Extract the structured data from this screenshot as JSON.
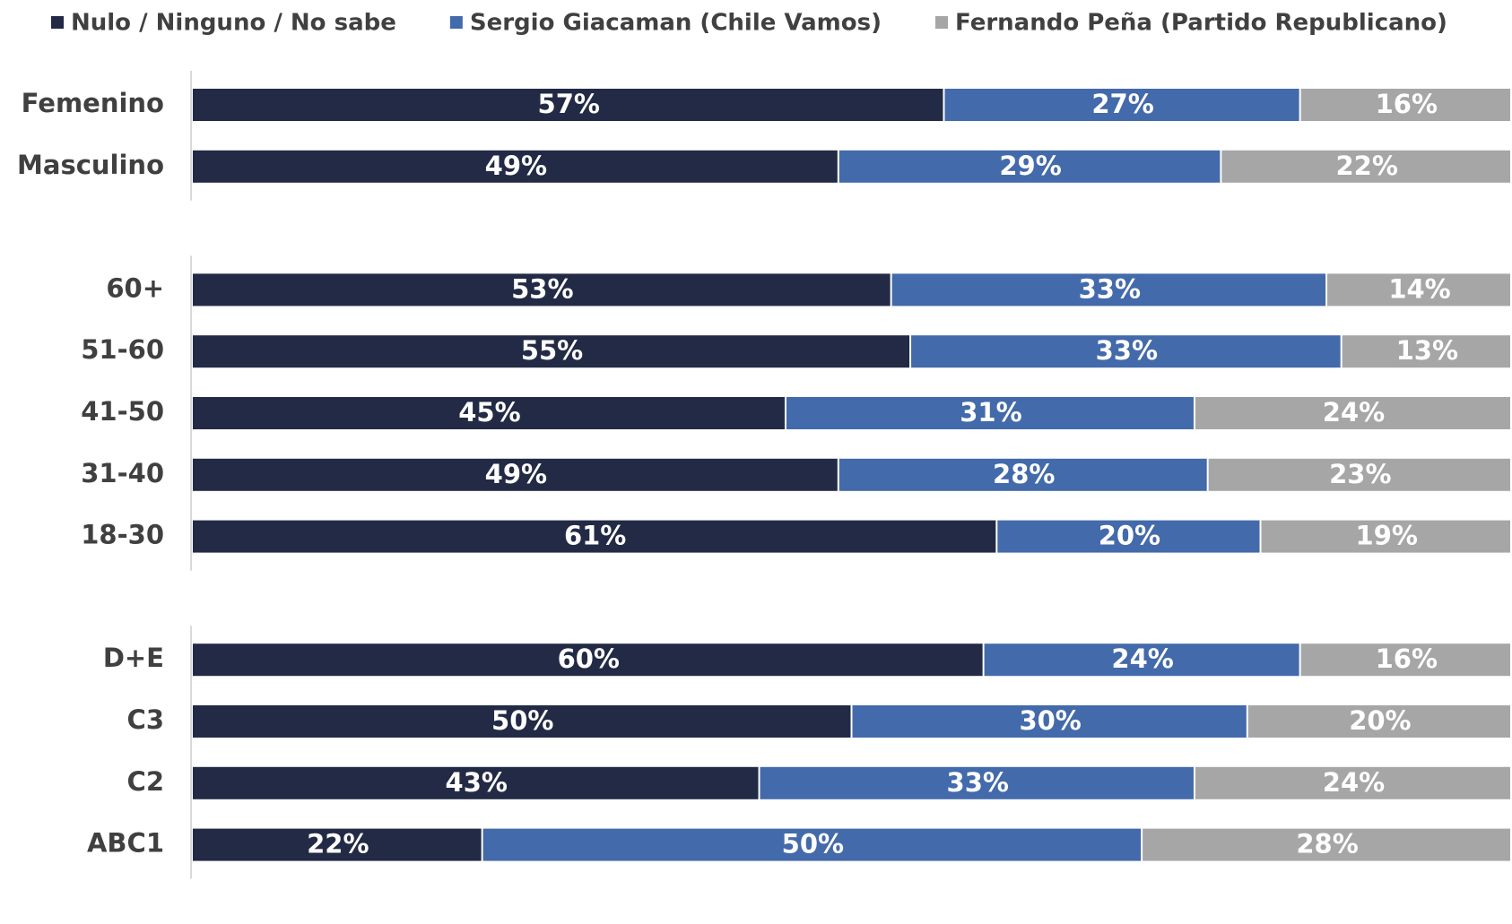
{
  "chart_data": {
    "type": "stacked-bar-horizontal",
    "categories": [
      "Femenino",
      "Masculino",
      null,
      "60+",
      "51-60",
      "41-50",
      "31-40",
      "18-30",
      null,
      "D+E",
      "C3",
      "C2",
      "ABC1"
    ],
    "series": [
      {
        "name": "Nulo / Ninguno / No sabe",
        "color": "#222a45",
        "values": [
          57,
          49,
          null,
          53,
          55,
          45,
          49,
          61,
          null,
          60,
          50,
          43,
          22
        ],
        "value_labels": [
          "57%",
          "49%",
          null,
          "53%",
          "55%",
          "45%",
          "49%",
          "61%",
          null,
          "60%",
          "50%",
          "43%",
          "22%"
        ]
      },
      {
        "name": "Sergio Giacaman (Chile Vamos)",
        "color": "#436aaa",
        "values": [
          27,
          29,
          null,
          33,
          33,
          31,
          28,
          20,
          null,
          24,
          30,
          33,
          50
        ],
        "value_labels": [
          "27%",
          "29%",
          null,
          "33%",
          "33%",
          "31%",
          "28%",
          "20%",
          null,
          "24%",
          "30%",
          "33%",
          "50%"
        ]
      },
      {
        "name": "Fernando Peña (Partido Republicano)",
        "color": "#a6a6a6",
        "values": [
          16,
          22,
          null,
          14,
          13,
          24,
          23,
          19,
          null,
          16,
          20,
          24,
          28
        ],
        "value_labels": [
          "16%",
          "22%",
          null,
          "14%",
          "13%",
          "24%",
          "23%",
          "19%",
          null,
          "16%",
          "20%",
          "24%",
          "28%"
        ]
      }
    ]
  }
}
